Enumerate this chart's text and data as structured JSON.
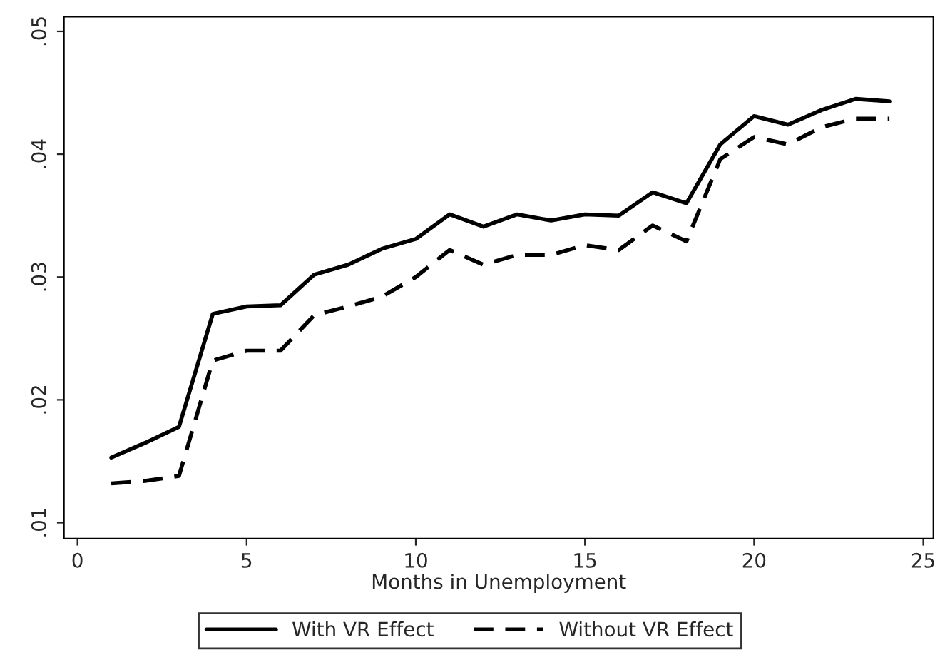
{
  "chart_data": {
    "type": "line",
    "xlabel": "Months in Unemployment",
    "x": [
      1,
      2,
      3,
      4,
      5,
      6,
      7,
      8,
      9,
      10,
      11,
      12,
      13,
      14,
      15,
      16,
      17,
      18,
      19,
      20,
      21,
      22,
      23,
      24
    ],
    "series": [
      {
        "name": "With VR Effect",
        "color": "#000000",
        "line_style": "solid",
        "values": [
          0.0153,
          0.0165,
          0.0178,
          0.027,
          0.0276,
          0.0277,
          0.0302,
          0.031,
          0.0323,
          0.0331,
          0.0351,
          0.0341,
          0.0351,
          0.0346,
          0.0351,
          0.035,
          0.0369,
          0.036,
          0.0408,
          0.0431,
          0.0424,
          0.0436,
          0.0445,
          0.0443
        ]
      },
      {
        "name": "Without VR Effect",
        "color": "#000000",
        "line_style": "dashed",
        "values": [
          0.0132,
          0.0134,
          0.0138,
          0.0232,
          0.024,
          0.024,
          0.0269,
          0.0276,
          0.0284,
          0.03,
          0.0322,
          0.031,
          0.0318,
          0.0318,
          0.0326,
          0.0322,
          0.0342,
          0.0329,
          0.0396,
          0.0414,
          0.0408,
          0.0422,
          0.0429,
          0.0429
        ]
      }
    ],
    "xlim": [
      -0.4,
      25.3
    ],
    "xticks": [
      0,
      5,
      10,
      15,
      20,
      25
    ],
    "ylim": [
      0.0087,
      0.0512
    ],
    "yticks": [
      {
        "value": 0.01,
        "label": ".01"
      },
      {
        "value": 0.02,
        "label": ".02"
      },
      {
        "value": 0.03,
        "label": ".03"
      },
      {
        "value": 0.04,
        "label": ".04"
      },
      {
        "value": 0.05,
        "label": ".05"
      }
    ],
    "grid": false,
    "legend": "bottom"
  }
}
